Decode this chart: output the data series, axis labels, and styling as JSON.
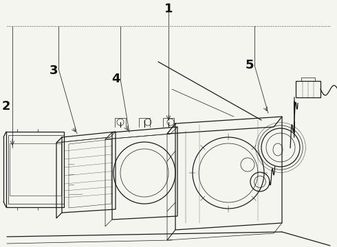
{
  "background_color": "#f5f5f0",
  "line_color": "#1a1a1a",
  "label_color": "#111111",
  "labels": [
    "1",
    "2",
    "3",
    "4",
    "5"
  ],
  "label_fontsize": 13,
  "figsize": [
    4.9,
    3.6
  ],
  "dpi": 100,
  "leader_line_color": "#333333",
  "leader_lw": 0.6,
  "component_lw": 0.9,
  "thin_lw": 0.5
}
